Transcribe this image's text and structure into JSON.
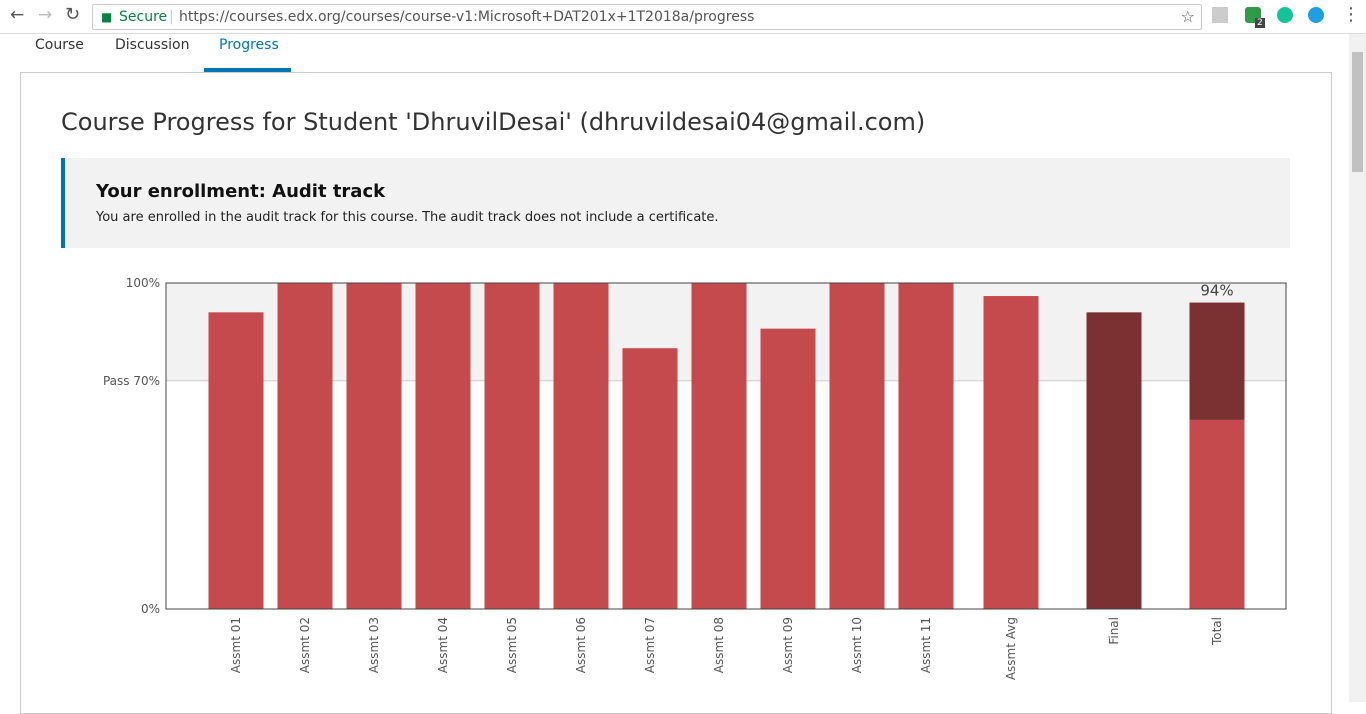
{
  "browser": {
    "security": "Secure",
    "url": "https://courses.edx.org/courses/course-v1:Microsoft+DAT201x+1T2018a/progress",
    "badge": "2"
  },
  "nav": {
    "tabs": [
      "Course",
      "Discussion",
      "Progress"
    ]
  },
  "header": {
    "title": "Course Progress for Student 'DhruvilDesai' (dhruvildesai04@gmail.com)"
  },
  "enrollment": {
    "title": "Your enrollment: Audit track",
    "text": "You are enrolled in the audit track for this course. The audit track does not include a certificate."
  },
  "chart_data": {
    "type": "bar",
    "stacked": true,
    "categories": [
      "Assmt 01",
      "Assmt 02",
      "Assmt 03",
      "Assmt 04",
      "Assmt 05",
      "Assmt 06",
      "Assmt 07",
      "Assmt 08",
      "Assmt 09",
      "Assmt 10",
      "Assmt 11",
      "Assmt Avg",
      "Final",
      "Total"
    ],
    "series": [
      {
        "color": "#c44a4d",
        "values": [
          91,
          100,
          100,
          100,
          100,
          100,
          80,
          100,
          86,
          100,
          100,
          96,
          null,
          58
        ]
      },
      {
        "color": "#7b3032",
        "values": [
          null,
          null,
          null,
          null,
          null,
          null,
          null,
          null,
          null,
          null,
          null,
          null,
          91,
          36
        ]
      }
    ],
    "annotation": {
      "value": 94,
      "label": "94%"
    },
    "ylim": [
      0,
      100
    ],
    "yticks": [
      {
        "value": 0,
        "label": "0%"
      },
      {
        "value": 70,
        "label": "Pass 70%"
      },
      {
        "value": 100,
        "label": "100%"
      }
    ]
  }
}
